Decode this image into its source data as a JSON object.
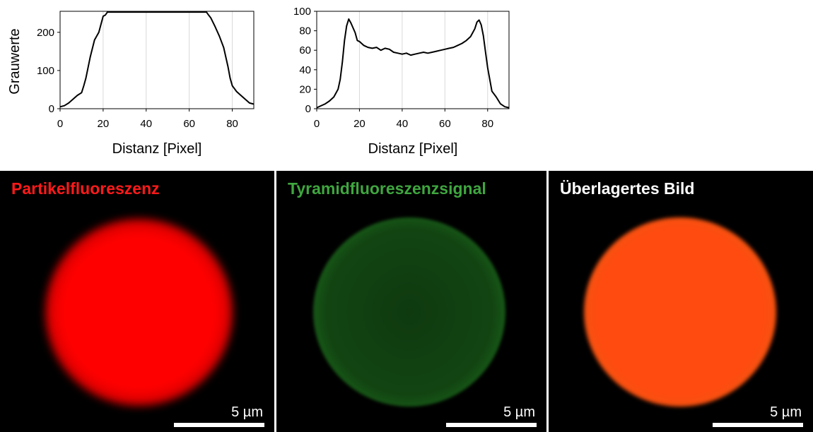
{
  "chart_data": [
    {
      "type": "line",
      "ylabel": "Grauwerte",
      "xlabel": "Distanz [Pixel]",
      "xlim": [
        0,
        90
      ],
      "ylim": [
        0,
        255
      ],
      "xticks": [
        0,
        20,
        40,
        60,
        80
      ],
      "yticks": [
        0,
        100,
        200
      ],
      "grid": "vertical",
      "x": [
        0,
        2,
        4,
        6,
        8,
        10,
        11,
        12,
        14,
        16,
        18,
        20,
        21,
        22,
        24,
        30,
        40,
        50,
        60,
        67,
        68,
        69,
        70,
        72,
        74,
        76,
        78,
        79,
        80,
        82,
        84,
        86,
        88,
        90
      ],
      "y": [
        5,
        8,
        15,
        25,
        35,
        42,
        60,
        80,
        135,
        180,
        200,
        242,
        245,
        253,
        253,
        253,
        253,
        253,
        253,
        253,
        253,
        245,
        238,
        215,
        190,
        160,
        110,
        80,
        60,
        45,
        35,
        25,
        15,
        12
      ]
    },
    {
      "type": "line",
      "xlabel": "Distanz [Pixel]",
      "xlim": [
        0,
        90
      ],
      "ylim": [
        0,
        100
      ],
      "xticks": [
        0,
        20,
        40,
        60,
        80
      ],
      "yticks": [
        0,
        20,
        40,
        60,
        80,
        100
      ],
      "grid": "vertical",
      "x": [
        0,
        2,
        4,
        6,
        8,
        10,
        11,
        12,
        13,
        14,
        15,
        16,
        17,
        18,
        19,
        20,
        22,
        24,
        26,
        28,
        30,
        32,
        34,
        36,
        38,
        40,
        42,
        44,
        46,
        48,
        50,
        52,
        54,
        56,
        58,
        60,
        62,
        64,
        66,
        68,
        70,
        72,
        73,
        74,
        75,
        76,
        77,
        78,
        79,
        80,
        82,
        84,
        86,
        88,
        90
      ],
      "y": [
        1,
        3,
        5,
        8,
        12,
        20,
        30,
        48,
        70,
        85,
        92,
        88,
        83,
        78,
        70,
        69,
        65,
        63,
        62,
        63,
        60,
        62,
        61,
        58,
        57,
        56,
        57,
        55,
        56,
        57,
        58,
        57,
        58,
        59,
        60,
        61,
        62,
        63,
        65,
        67,
        70,
        74,
        78,
        82,
        89,
        91,
        86,
        75,
        58,
        42,
        18,
        12,
        5,
        2,
        1
      ]
    }
  ],
  "images": [
    {
      "title": "Partikelfluoreszenz",
      "title_color": "#ff1a1a",
      "scale_label": "5 µm",
      "particle_color": "#ff0000"
    },
    {
      "title": "Tyramidfluoreszenzsignal",
      "title_color": "#3fa63f",
      "scale_label": "5 µm",
      "particle_color": "#1f8a1f"
    },
    {
      "title": "Überlagertes Bild",
      "title_color": "#ffffff",
      "scale_label": "5 µm",
      "particle_color": "#ff4a10"
    }
  ]
}
